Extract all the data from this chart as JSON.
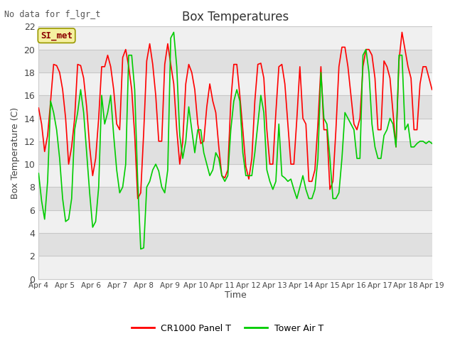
{
  "title": "Box Temperatures",
  "no_data_text": "No data for f_lgr_t",
  "station_label": "SI_met",
  "ylabel": "Box Temperature (C)",
  "xlabel": "Time",
  "ylim": [
    0,
    22
  ],
  "yticks": [
    0,
    2,
    4,
    6,
    8,
    10,
    12,
    14,
    16,
    18,
    20,
    22
  ],
  "xtick_labels": [
    "Apr 4",
    "Apr 5",
    "Apr 6",
    "Apr 7",
    "Apr 8",
    "Apr 9",
    "Apr 10",
    "Apr 11",
    "Apr 12",
    "Apr 13",
    "Apr 14",
    "Apr 15",
    "Apr 16",
    "Apr 17",
    "Apr 18",
    "Apr 19"
  ],
  "background_color": "#ffffff",
  "plot_bg_color": "#ffffff",
  "grid_color_light": "#e0e0e0",
  "grid_color_dark": "#cccccc",
  "line1_color": "#ff0000",
  "line2_color": "#00cc00",
  "line1_label": "CR1000 Panel T",
  "line2_label": "Tower Air T",
  "cr1000_panel_t": [
    14.9,
    13.5,
    11.1,
    12.5,
    15.5,
    18.7,
    18.6,
    18.0,
    16.5,
    14.0,
    10.0,
    11.5,
    14.0,
    18.7,
    18.6,
    17.5,
    15.0,
    11.5,
    9.0,
    10.5,
    14.0,
    18.5,
    18.5,
    19.5,
    18.5,
    16.5,
    13.5,
    13.0,
    19.3,
    20.0,
    18.5,
    16.5,
    12.5,
    7.0,
    7.5,
    12.8,
    19.0,
    20.5,
    18.7,
    16.0,
    12.0,
    12.0,
    18.7,
    20.5,
    18.7,
    17.0,
    13.0,
    10.0,
    12.0,
    17.0,
    18.7,
    18.0,
    16.5,
    13.5,
    11.8,
    12.0,
    15.0,
    17.0,
    15.5,
    14.5,
    11.5,
    9.0,
    8.8,
    9.5,
    15.5,
    18.7,
    18.7,
    16.0,
    13.0,
    9.8,
    8.7,
    10.5,
    15.5,
    18.7,
    18.8,
    17.5,
    13.0,
    10.0,
    10.0,
    14.5,
    18.5,
    18.7,
    17.0,
    13.5,
    10.0,
    10.0,
    14.0,
    18.5,
    14.0,
    13.5,
    8.5,
    8.5,
    9.5,
    13.5,
    18.5,
    13.0,
    13.0,
    7.8,
    8.5,
    13.0,
    18.5,
    20.2,
    20.2,
    18.5,
    16.0,
    13.5,
    13.0,
    14.0,
    18.5,
    20.0,
    20.0,
    19.5,
    17.5,
    13.0,
    13.0,
    19.0,
    18.5,
    17.5,
    14.5,
    11.5,
    19.0,
    21.5,
    20.0,
    18.5,
    17.5,
    13.0,
    13.0,
    17.0,
    18.5,
    18.5,
    17.5,
    16.5
  ],
  "tower_air_t": [
    9.2,
    6.8,
    5.2,
    8.5,
    15.5,
    14.5,
    13.0,
    10.5,
    7.0,
    5.0,
    5.2,
    7.0,
    13.0,
    14.5,
    16.5,
    14.5,
    11.0,
    7.5,
    4.5,
    5.0,
    8.0,
    16.0,
    13.5,
    14.5,
    16.0,
    12.5,
    9.5,
    7.5,
    8.0,
    10.0,
    19.5,
    19.5,
    16.5,
    8.5,
    2.6,
    2.7,
    8.0,
    8.5,
    9.5,
    10.0,
    9.4,
    8.0,
    7.5,
    9.5,
    21.0,
    21.5,
    18.5,
    12.5,
    10.5,
    12.0,
    15.0,
    13.0,
    11.0,
    13.0,
    13.0,
    11.0,
    10.0,
    9.0,
    9.5,
    11.0,
    10.5,
    9.0,
    8.5,
    9.0,
    13.0,
    15.5,
    16.5,
    15.5,
    11.0,
    9.0,
    9.0,
    9.0,
    11.0,
    13.5,
    16.0,
    14.5,
    9.5,
    8.5,
    7.8,
    8.5,
    13.5,
    9.0,
    8.8,
    8.5,
    8.7,
    7.8,
    7.0,
    8.0,
    9.0,
    7.8,
    7.0,
    7.0,
    7.8,
    10.5,
    18.0,
    14.0,
    13.5,
    10.5,
    7.0,
    7.0,
    7.5,
    10.5,
    14.5,
    14.0,
    13.5,
    13.0,
    10.5,
    10.5,
    19.5,
    20.0,
    18.0,
    13.5,
    11.5,
    10.5,
    10.5,
    12.5,
    13.0,
    14.0,
    13.5,
    11.5,
    19.5,
    19.5,
    13.0,
    13.5,
    11.5,
    11.5,
    11.8,
    12.0,
    12.0,
    11.8,
    12.0,
    11.8
  ]
}
